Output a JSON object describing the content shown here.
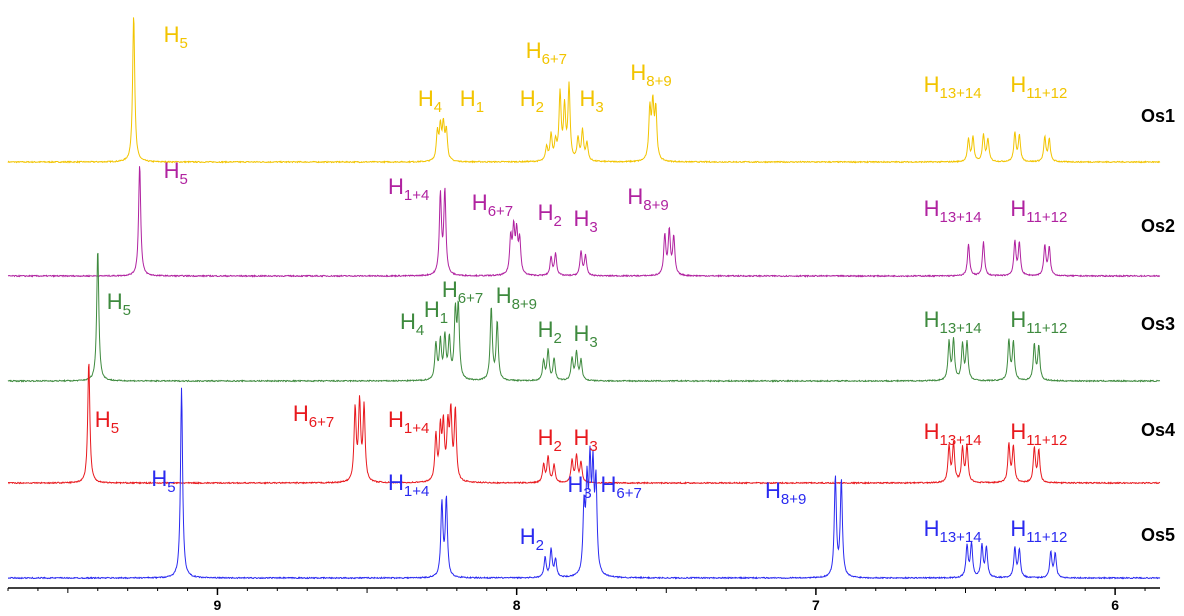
{
  "chart_data": {
    "type": "line",
    "title": "",
    "xlabel": "",
    "ylabel": "",
    "x_reversed": true,
    "xlim": [
      9.7,
      5.85
    ],
    "x_ticks": [
      9,
      8,
      7,
      6
    ],
    "x_tick_labels": [
      "9",
      "8",
      "7",
      "6"
    ],
    "series": [
      {
        "name": "Os1",
        "color": "#f2c400",
        "peaks": [
          {
            "ppm": 9.28,
            "h": 148
          },
          {
            "ppm": 8.265,
            "h": 28
          },
          {
            "ppm": 8.255,
            "h": 32
          },
          {
            "ppm": 8.245,
            "h": 34
          },
          {
            "ppm": 8.235,
            "h": 30
          },
          {
            "ppm": 7.9,
            "h": 14
          },
          {
            "ppm": 7.885,
            "h": 26
          },
          {
            "ppm": 7.87,
            "h": 18
          },
          {
            "ppm": 7.855,
            "h": 66
          },
          {
            "ppm": 7.84,
            "h": 52
          },
          {
            "ppm": 7.825,
            "h": 74
          },
          {
            "ppm": 7.795,
            "h": 22
          },
          {
            "ppm": 7.78,
            "h": 30
          },
          {
            "ppm": 7.765,
            "h": 18
          },
          {
            "ppm": 7.555,
            "h": 50
          },
          {
            "ppm": 7.545,
            "h": 54
          },
          {
            "ppm": 7.535,
            "h": 50
          },
          {
            "ppm": 6.49,
            "h": 22
          },
          {
            "ppm": 6.475,
            "h": 24
          },
          {
            "ppm": 6.44,
            "h": 26
          },
          {
            "ppm": 6.425,
            "h": 22
          },
          {
            "ppm": 6.335,
            "h": 28
          },
          {
            "ppm": 6.32,
            "h": 26
          },
          {
            "ppm": 6.235,
            "h": 24
          },
          {
            "ppm": 6.22,
            "h": 22
          }
        ]
      },
      {
        "name": "Os2",
        "color": "#b022a0",
        "peaks": [
          {
            "ppm": 9.26,
            "h": 112
          },
          {
            "ppm": 8.255,
            "h": 80
          },
          {
            "ppm": 8.24,
            "h": 84
          },
          {
            "ppm": 8.02,
            "h": 36
          },
          {
            "ppm": 8.01,
            "h": 44
          },
          {
            "ppm": 8.0,
            "h": 40
          },
          {
            "ppm": 7.99,
            "h": 34
          },
          {
            "ppm": 7.885,
            "h": 18
          },
          {
            "ppm": 7.87,
            "h": 22
          },
          {
            "ppm": 7.785,
            "h": 24
          },
          {
            "ppm": 7.77,
            "h": 20
          },
          {
            "ppm": 7.505,
            "h": 40
          },
          {
            "ppm": 7.49,
            "h": 44
          },
          {
            "ppm": 7.475,
            "h": 38
          },
          {
            "ppm": 6.49,
            "h": 32
          },
          {
            "ppm": 6.44,
            "h": 34
          },
          {
            "ppm": 6.335,
            "h": 34
          },
          {
            "ppm": 6.32,
            "h": 32
          },
          {
            "ppm": 6.235,
            "h": 30
          },
          {
            "ppm": 6.22,
            "h": 28
          }
        ]
      },
      {
        "name": "Os3",
        "color": "#3e8a3e",
        "peaks": [
          {
            "ppm": 9.4,
            "h": 132
          },
          {
            "ppm": 8.27,
            "h": 36
          },
          {
            "ppm": 8.255,
            "h": 38
          },
          {
            "ppm": 8.24,
            "h": 42
          },
          {
            "ppm": 8.225,
            "h": 40
          },
          {
            "ppm": 8.205,
            "h": 66
          },
          {
            "ppm": 8.195,
            "h": 70
          },
          {
            "ppm": 8.085,
            "h": 72
          },
          {
            "ppm": 8.065,
            "h": 58
          },
          {
            "ppm": 7.91,
            "h": 20
          },
          {
            "ppm": 7.895,
            "h": 30
          },
          {
            "ppm": 7.875,
            "h": 22
          },
          {
            "ppm": 7.815,
            "h": 22
          },
          {
            "ppm": 7.8,
            "h": 28
          },
          {
            "ppm": 7.785,
            "h": 20
          },
          {
            "ppm": 6.555,
            "h": 38
          },
          {
            "ppm": 6.54,
            "h": 40
          },
          {
            "ppm": 6.51,
            "h": 36
          },
          {
            "ppm": 6.495,
            "h": 38
          },
          {
            "ppm": 6.355,
            "h": 40
          },
          {
            "ppm": 6.34,
            "h": 38
          },
          {
            "ppm": 6.27,
            "h": 36
          },
          {
            "ppm": 6.255,
            "h": 34
          }
        ]
      },
      {
        "name": "Os4",
        "color": "#e8191e",
        "peaks": [
          {
            "ppm": 9.43,
            "h": 122
          },
          {
            "ppm": 8.54,
            "h": 72
          },
          {
            "ppm": 8.525,
            "h": 78
          },
          {
            "ppm": 8.51,
            "h": 74
          },
          {
            "ppm": 8.27,
            "h": 46
          },
          {
            "ppm": 8.255,
            "h": 50
          },
          {
            "ppm": 8.245,
            "h": 54
          },
          {
            "ppm": 8.23,
            "h": 52
          },
          {
            "ppm": 8.22,
            "h": 66
          },
          {
            "ppm": 8.205,
            "h": 70
          },
          {
            "ppm": 7.91,
            "h": 18
          },
          {
            "ppm": 7.895,
            "h": 26
          },
          {
            "ppm": 7.875,
            "h": 18
          },
          {
            "ppm": 7.815,
            "h": 22
          },
          {
            "ppm": 7.8,
            "h": 26
          },
          {
            "ppm": 7.785,
            "h": 20
          },
          {
            "ppm": 6.555,
            "h": 36
          },
          {
            "ppm": 6.54,
            "h": 38
          },
          {
            "ppm": 6.51,
            "h": 34
          },
          {
            "ppm": 6.495,
            "h": 36
          },
          {
            "ppm": 6.355,
            "h": 38
          },
          {
            "ppm": 6.34,
            "h": 36
          },
          {
            "ppm": 6.27,
            "h": 34
          },
          {
            "ppm": 6.255,
            "h": 32
          }
        ]
      },
      {
        "name": "Os5",
        "color": "#2a2af0",
        "peaks": [
          {
            "ppm": 9.12,
            "h": 190
          },
          {
            "ppm": 8.25,
            "h": 74
          },
          {
            "ppm": 8.235,
            "h": 78
          },
          {
            "ppm": 7.905,
            "h": 20
          },
          {
            "ppm": 7.885,
            "h": 28
          },
          {
            "ppm": 7.87,
            "h": 18
          },
          {
            "ppm": 7.775,
            "h": 64
          },
          {
            "ppm": 7.765,
            "h": 82
          },
          {
            "ppm": 7.755,
            "h": 100
          },
          {
            "ppm": 7.745,
            "h": 96
          },
          {
            "ppm": 7.735,
            "h": 88
          },
          {
            "ppm": 6.935,
            "h": 100
          },
          {
            "ppm": 6.915,
            "h": 96
          },
          {
            "ppm": 6.495,
            "h": 32
          },
          {
            "ppm": 6.48,
            "h": 34
          },
          {
            "ppm": 6.445,
            "h": 32
          },
          {
            "ppm": 6.43,
            "h": 30
          },
          {
            "ppm": 6.335,
            "h": 30
          },
          {
            "ppm": 6.32,
            "h": 28
          },
          {
            "ppm": 6.215,
            "h": 26
          },
          {
            "ppm": 6.2,
            "h": 24
          }
        ]
      }
    ],
    "annotations": [
      {
        "series": "Os1",
        "main": "H",
        "sub": "5",
        "ppm": 9.18,
        "dy": -120,
        "anchor": "start"
      },
      {
        "series": "Os1",
        "main": "H",
        "sub": "4",
        "ppm": 8.33,
        "dy": -56,
        "anchor": "start"
      },
      {
        "series": "Os1",
        "main": "H",
        "sub": "1",
        "ppm": 8.19,
        "dy": -56,
        "anchor": "start"
      },
      {
        "series": "Os1",
        "main": "H",
        "sub": "2",
        "ppm": 7.99,
        "dy": -56,
        "anchor": "start"
      },
      {
        "series": "Os1",
        "main": "H",
        "sub": "6+7",
        "ppm": 7.97,
        "dy": -104,
        "anchor": "start"
      },
      {
        "series": "Os1",
        "main": "H",
        "sub": "3",
        "ppm": 7.79,
        "dy": -56,
        "anchor": "start"
      },
      {
        "series": "Os1",
        "main": "H",
        "sub": "8+9",
        "ppm": 7.62,
        "dy": -82,
        "anchor": "start"
      },
      {
        "series": "Os1",
        "main": "H",
        "sub": "13+14",
        "ppm": 6.64,
        "dy": -70,
        "anchor": "start"
      },
      {
        "series": "Os1",
        "main": "H",
        "sub": "11+12",
        "ppm": 6.35,
        "dy": -70,
        "anchor": "start"
      },
      {
        "series": "Os2",
        "main": "H",
        "sub": "5",
        "ppm": 9.18,
        "dy": -98,
        "anchor": "start"
      },
      {
        "series": "Os2",
        "main": "H",
        "sub": "1+4",
        "ppm": 8.43,
        "dy": -82,
        "anchor": "start"
      },
      {
        "series": "Os2",
        "main": "H",
        "sub": "6+7",
        "ppm": 8.15,
        "dy": -66,
        "anchor": "start"
      },
      {
        "series": "Os2",
        "main": "H",
        "sub": "2",
        "ppm": 7.93,
        "dy": -56,
        "anchor": "start"
      },
      {
        "series": "Os2",
        "main": "H",
        "sub": "3",
        "ppm": 7.81,
        "dy": -50,
        "anchor": "start"
      },
      {
        "series": "Os2",
        "main": "H",
        "sub": "8+9",
        "ppm": 7.63,
        "dy": -72,
        "anchor": "start"
      },
      {
        "series": "Os2",
        "main": "H",
        "sub": "13+14",
        "ppm": 6.64,
        "dy": -60,
        "anchor": "start"
      },
      {
        "series": "Os2",
        "main": "H",
        "sub": "11+12",
        "ppm": 6.35,
        "dy": -60,
        "anchor": "start"
      },
      {
        "series": "Os3",
        "main": "H",
        "sub": "5",
        "ppm": 9.37,
        "dy": -72,
        "anchor": "start"
      },
      {
        "series": "Os3",
        "main": "H",
        "sub": "4",
        "ppm": 8.39,
        "dy": -52,
        "anchor": "start"
      },
      {
        "series": "Os3",
        "main": "H",
        "sub": "1",
        "ppm": 8.31,
        "dy": -64,
        "anchor": "start"
      },
      {
        "series": "Os3",
        "main": "H",
        "sub": "6+7",
        "ppm": 8.25,
        "dy": -84,
        "anchor": "start"
      },
      {
        "series": "Os3",
        "main": "H",
        "sub": "8+9",
        "ppm": 8.07,
        "dy": -78,
        "anchor": "start"
      },
      {
        "series": "Os3",
        "main": "H",
        "sub": "2",
        "ppm": 7.93,
        "dy": -44,
        "anchor": "start"
      },
      {
        "series": "Os3",
        "main": "H",
        "sub": "3",
        "ppm": 7.81,
        "dy": -40,
        "anchor": "start"
      },
      {
        "series": "Os3",
        "main": "H",
        "sub": "13+14",
        "ppm": 6.64,
        "dy": -54,
        "anchor": "start"
      },
      {
        "series": "Os3",
        "main": "H",
        "sub": "11+12",
        "ppm": 6.35,
        "dy": -54,
        "anchor": "start"
      },
      {
        "series": "Os4",
        "main": "H",
        "sub": "5",
        "ppm": 9.41,
        "dy": -56,
        "anchor": "start"
      },
      {
        "series": "Os4",
        "main": "H",
        "sub": "6+7",
        "ppm": 8.61,
        "dy": -62,
        "anchor": "end"
      },
      {
        "series": "Os4",
        "main": "H",
        "sub": "1+4",
        "ppm": 8.43,
        "dy": -56,
        "anchor": "start"
      },
      {
        "series": "Os4",
        "main": "H",
        "sub": "2",
        "ppm": 7.93,
        "dy": -38,
        "anchor": "start"
      },
      {
        "series": "Os4",
        "main": "H",
        "sub": "3",
        "ppm": 7.81,
        "dy": -38,
        "anchor": "start"
      },
      {
        "series": "Os4",
        "main": "H",
        "sub": "13+14",
        "ppm": 6.64,
        "dy": -44,
        "anchor": "start"
      },
      {
        "series": "Os4",
        "main": "H",
        "sub": "11+12",
        "ppm": 6.35,
        "dy": -44,
        "anchor": "start"
      },
      {
        "series": "Os5",
        "main": "H",
        "sub": "5",
        "ppm": 9.14,
        "dy": -92,
        "anchor": "end"
      },
      {
        "series": "Os5",
        "main": "H",
        "sub": "1+4",
        "ppm": 8.43,
        "dy": -88,
        "anchor": "start"
      },
      {
        "series": "Os5",
        "main": "H",
        "sub": "2",
        "ppm": 7.99,
        "dy": -34,
        "anchor": "start"
      },
      {
        "series": "Os5",
        "main": "H",
        "sub": "3",
        "ppm": 7.83,
        "dy": -86,
        "anchor": "start"
      },
      {
        "series": "Os5",
        "main": "H",
        "sub": "6+7",
        "ppm": 7.72,
        "dy": -86,
        "anchor": "start"
      },
      {
        "series": "Os5",
        "main": "H",
        "sub": "8+9",
        "ppm": 7.17,
        "dy": -80,
        "anchor": "start"
      },
      {
        "series": "Os5",
        "main": "H",
        "sub": "13+14",
        "ppm": 6.64,
        "dy": -42,
        "anchor": "start"
      },
      {
        "series": "Os5",
        "main": "H",
        "sub": "11+12",
        "ppm": 6.35,
        "dy": -42,
        "anchor": "start"
      }
    ]
  }
}
